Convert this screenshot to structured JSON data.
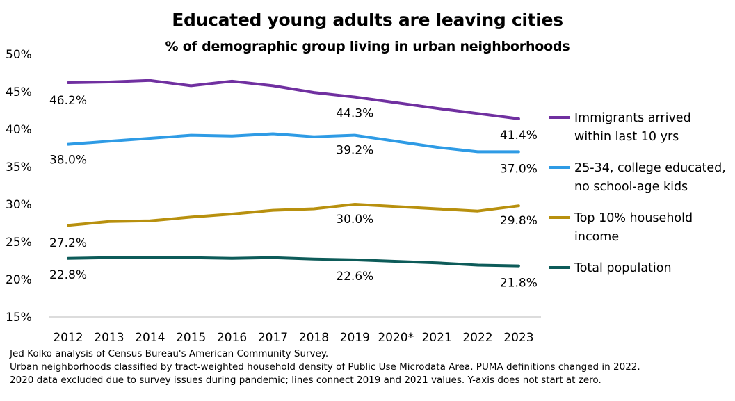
{
  "header": {
    "title": "Educated young adults are leaving cities",
    "subtitle": "% of demographic group living in urban neighborhoods"
  },
  "chart_data": {
    "type": "line",
    "title": "Educated young adults are leaving cities",
    "subtitle": "% of demographic group living in urban neighborhoods",
    "xlabel": "",
    "ylabel": "",
    "categories": [
      "2012",
      "2013",
      "2014",
      "2015",
      "2016",
      "2017",
      "2018",
      "2019",
      "2020*",
      "2021",
      "2022",
      "2023"
    ],
    "y_ticks": [
      "15%",
      "20%",
      "25%",
      "30%",
      "35%",
      "40%",
      "45%",
      "50%"
    ],
    "ylim": [
      15,
      50
    ],
    "grid": false,
    "legend_position": "right",
    "series": [
      {
        "name": "Immigrants arrived\nwithin last 10 yrs",
        "color": "#7030a0",
        "values": [
          46.2,
          46.3,
          46.5,
          45.8,
          46.4,
          45.8,
          44.9,
          44.3,
          null,
          42.8,
          42.1,
          41.4
        ],
        "labels": [
          "46.2%",
          "44.3%",
          "41.4%"
        ]
      },
      {
        "name": "25-34, college educated,\nno school-age kids",
        "color": "#2e9be5",
        "values": [
          38.0,
          38.4,
          38.8,
          39.2,
          39.1,
          39.4,
          39.0,
          39.2,
          null,
          37.6,
          37.0,
          37.0
        ],
        "labels": [
          "38.0%",
          "39.2%",
          "37.0%"
        ]
      },
      {
        "name": "Top 10% household\nincome",
        "color": "#b8900e",
        "values": [
          27.2,
          27.7,
          27.8,
          28.3,
          28.7,
          29.2,
          29.4,
          30.0,
          null,
          29.4,
          29.1,
          29.8
        ],
        "labels": [
          "27.2%",
          "30.0%",
          "29.8%"
        ]
      },
      {
        "name": "Total population",
        "color": "#0d5b59",
        "values": [
          22.8,
          22.9,
          22.9,
          22.9,
          22.8,
          22.9,
          22.7,
          22.6,
          null,
          22.2,
          21.9,
          21.8
        ],
        "labels": [
          "22.8%",
          "22.6%",
          "21.8%"
        ]
      }
    ]
  },
  "footer": {
    "line1": "Jed Kolko analysis of Census Bureau's American Community Survey.",
    "line2": "Urban neighborhoods classified by tract-weighted household density of Public Use Microdata Area. PUMA definitions changed in 2022.",
    "line3": "2020 data excluded due to survey issues during pandemic; lines connect 2019 and 2021 values. Y-axis does not start at zero."
  }
}
